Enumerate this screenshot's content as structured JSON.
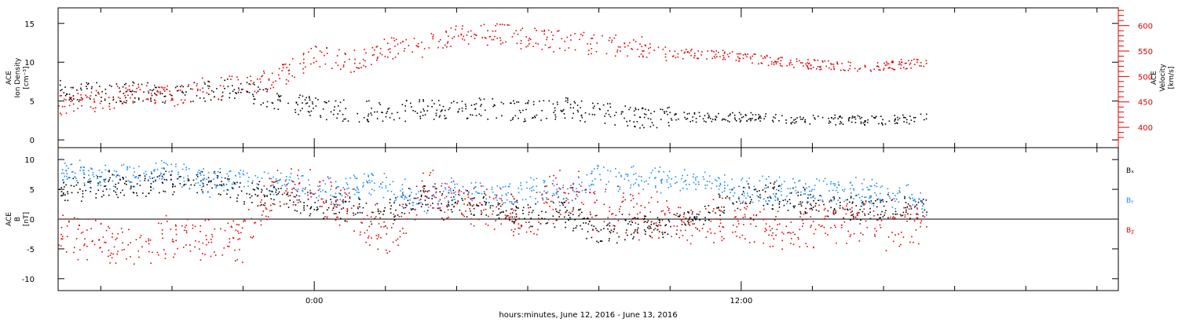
{
  "chart_data": [
    {
      "type": "scatter",
      "ylabel_lines": [
        "ACE",
        "Ion Density",
        "[cm⁻³]"
      ],
      "ylabel_right_lines": [
        "ACE",
        "Velocity",
        "[km/s]"
      ],
      "ylim": [
        -1,
        17
      ],
      "yticks": [
        0,
        5,
        10,
        15
      ],
      "yticks_right": [
        400,
        450,
        500,
        550,
        600
      ],
      "ylim_right": [
        360,
        635
      ],
      "colors": {
        "density": "#000000",
        "velocity": "#e00000"
      },
      "series": [
        {
          "axis": "left",
          "color_key": "density",
          "x": [
            -7.0,
            -6.0,
            -5.0,
            -4.0,
            -3.0,
            -2.0,
            -1.0,
            0.0,
            1.0,
            2.0,
            3.0,
            4.0,
            5.0,
            6.0,
            7.0,
            8.0,
            9.0,
            10.0,
            11.0,
            12.0,
            13.0,
            14.0,
            15.0,
            16.0,
            17.0
          ],
          "values": [
            6.5,
            6.0,
            6.2,
            5.8,
            6.5,
            6.5,
            5.0,
            4.2,
            3.8,
            3.7,
            4.0,
            4.2,
            4.0,
            3.8,
            4.2,
            3.5,
            3.0,
            3.0,
            3.0,
            3.0,
            2.8,
            2.7,
            2.6,
            2.6,
            2.8
          ]
        },
        {
          "axis": "right",
          "color_key": "velocity",
          "x": [
            -7.0,
            -6.0,
            -5.0,
            -4.0,
            -3.0,
            -2.0,
            -1.0,
            0.0,
            1.0,
            2.0,
            3.0,
            4.0,
            5.0,
            6.0,
            7.0,
            8.0,
            9.0,
            10.0,
            11.0,
            12.0,
            13.0,
            14.0,
            15.0,
            16.0,
            17.0
          ],
          "values": [
            445,
            455,
            470,
            460,
            480,
            480,
            500,
            540,
            530,
            555,
            560,
            580,
            585,
            575,
            570,
            565,
            560,
            545,
            545,
            540,
            530,
            525,
            520,
            520,
            530
          ]
        }
      ]
    },
    {
      "type": "scatter",
      "ylabel_lines": [
        "ACE",
        "B",
        "[nT]"
      ],
      "ylim": [
        -12,
        12
      ],
      "yticks": [
        -10,
        -5,
        0,
        5,
        10
      ],
      "colors": {
        "bx": "#000000",
        "by": "#1a8cff",
        "bz": "#e00000"
      },
      "series": [
        {
          "name": "Bx",
          "color_key": "bx",
          "x": [
            -7.0,
            -6.0,
            -5.0,
            -4.0,
            -3.0,
            -2.0,
            -1.0,
            0.0,
            1.0,
            2.0,
            3.0,
            4.0,
            5.0,
            6.0,
            7.0,
            8.0,
            9.0,
            10.0,
            11.0,
            12.0,
            13.0,
            14.0,
            15.0,
            16.0,
            17.0
          ],
          "values": [
            5,
            6,
            6,
            6.5,
            6,
            5,
            4,
            2,
            2,
            1,
            4,
            3,
            2,
            1,
            1,
            -2,
            -1,
            -1,
            1,
            4,
            4,
            3,
            2,
            2,
            2
          ]
        },
        {
          "name": "By",
          "color_key": "by",
          "x": [
            -7.0,
            -6.0,
            -5.0,
            -4.0,
            -3.0,
            -2.0,
            -1.0,
            0.0,
            1.0,
            2.0,
            3.0,
            4.0,
            5.0,
            6.0,
            7.0,
            8.0,
            9.0,
            10.0,
            11.0,
            12.0,
            13.0,
            14.0,
            15.0,
            16.0,
            17.0
          ],
          "values": [
            8,
            7,
            7,
            8,
            6,
            7,
            6,
            5,
            5,
            6,
            3,
            5,
            4,
            5,
            4,
            7,
            7,
            6.5,
            6.5,
            5,
            5,
            5,
            5,
            4.5,
            3
          ]
        },
        {
          "name": "Bz",
          "color_key": "bz",
          "x": [
            -7.0,
            -6.0,
            -5.0,
            -4.0,
            -3.0,
            -2.0,
            -1.0,
            0.0,
            1.0,
            2.0,
            3.0,
            4.0,
            5.0,
            6.0,
            7.0,
            8.0,
            9.0,
            10.0,
            11.0,
            12.0,
            13.0,
            14.0,
            15.0,
            16.0,
            17.0
          ],
          "values": [
            -3,
            -4,
            -5,
            -2,
            -4,
            -3,
            6,
            5,
            2,
            -3,
            5,
            3,
            2,
            0,
            5,
            2,
            1,
            0,
            -1,
            0,
            -2,
            -1,
            0,
            -1,
            0
          ]
        }
      ],
      "legend_labels": [
        "Bₓ",
        "Bᵧ",
        "B𝓏"
      ]
    }
  ],
  "x_axis": {
    "xlim": [
      -7.2,
      22.6
    ],
    "tick_labels": [
      {
        "x": 0,
        "label": "0:00"
      },
      {
        "x": 12,
        "label": "12:00"
      }
    ],
    "minor_ticks": [
      -6,
      -4,
      -2,
      2,
      4,
      6,
      8,
      10,
      14,
      16,
      18,
      20,
      22
    ],
    "caption": "hours:minutes, June 12, 2016 - June 13, 2016"
  }
}
